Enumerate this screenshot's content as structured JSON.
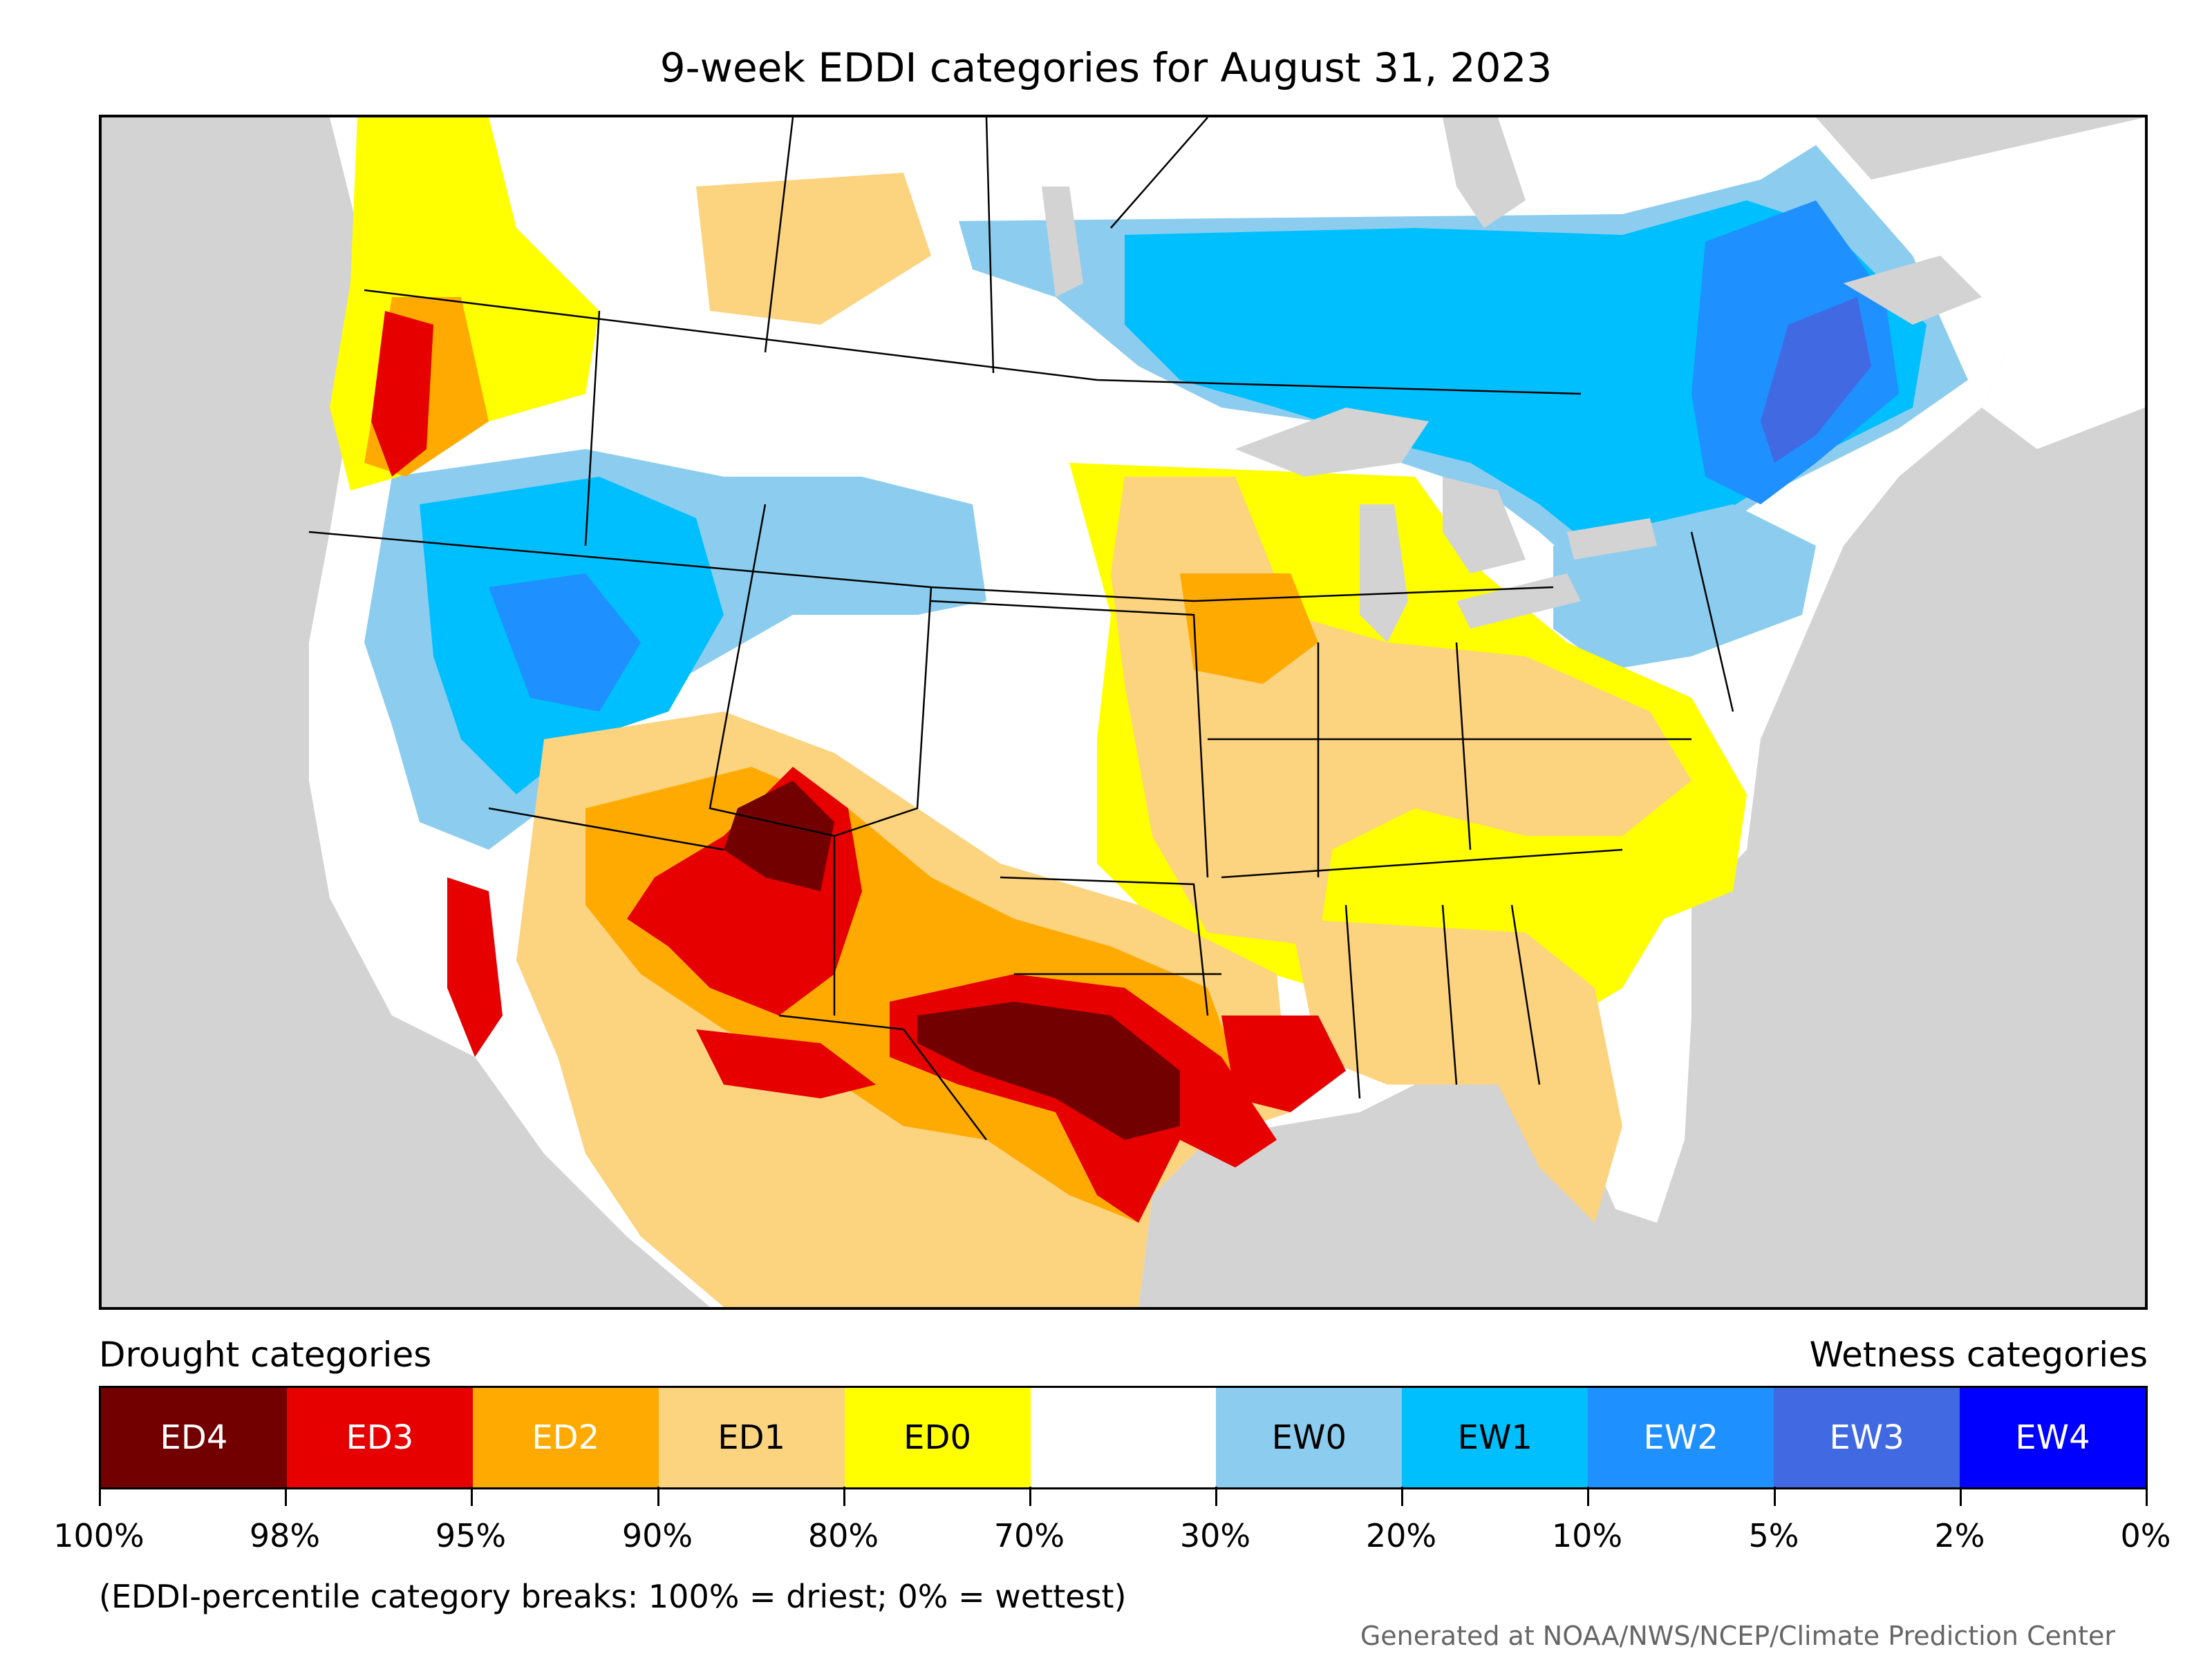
{
  "title": "9-week EDDI categories for August 31, 2023",
  "legend": {
    "drought_label": "Drought categories",
    "wetness_label": "Wetness categories",
    "categories": [
      {
        "code": "ED4",
        "color": "#730000",
        "text_color": "#ffffff"
      },
      {
        "code": "ED3",
        "color": "#e60000",
        "text_color": "#ffffff"
      },
      {
        "code": "ED2",
        "color": "#ffaa00",
        "text_color": "#ffffff"
      },
      {
        "code": "ED1",
        "color": "#fcd37f",
        "text_color": "#000000"
      },
      {
        "code": "ED0",
        "color": "#ffff00",
        "text_color": "#000000"
      },
      {
        "code": "",
        "color": "#ffffff",
        "text_color": "#000000"
      },
      {
        "code": "EW0",
        "color": "#8ccdef",
        "text_color": "#000000"
      },
      {
        "code": "EW1",
        "color": "#00bfff",
        "text_color": "#000000"
      },
      {
        "code": "EW2",
        "color": "#1e90ff",
        "text_color": "#ffffff"
      },
      {
        "code": "EW3",
        "color": "#4169e1",
        "text_color": "#ffffff"
      },
      {
        "code": "EW4",
        "color": "#0000ff",
        "text_color": "#ffffff"
      }
    ],
    "ticks": [
      "100%",
      "98%",
      "95%",
      "90%",
      "80%",
      "70%",
      "30%",
      "20%",
      "10%",
      "5%",
      "2%",
      "0%"
    ]
  },
  "note": "(EDDI-percentile category breaks: 100% = driest; 0% = wettest)",
  "credit": "Generated at NOAA/NWS/NCEP/Climate Prediction Center",
  "map": {
    "background_color": "#d3d3d3",
    "region": "Contiguous United States with parts of Canada and Mexico"
  }
}
